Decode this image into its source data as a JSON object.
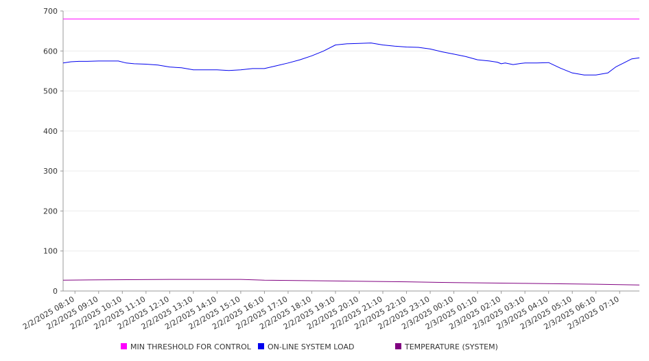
{
  "chart_data": {
    "type": "line",
    "title": "",
    "xlabel": "",
    "ylabel": "",
    "ylim": [
      0,
      700
    ],
    "yticks": [
      0,
      100,
      200,
      300,
      400,
      500,
      600,
      700
    ],
    "x_range": [
      "2/2/2025 07:40",
      "2/3/2025 08:00"
    ],
    "x_tick_labels": [
      "2/2/2025 08:10",
      "2/2/2025 09:10",
      "2/2/2025 10:10",
      "2/2/2025 11:10",
      "2/2/2025 12:10",
      "2/2/2025 13:10",
      "2/2/2025 14:10",
      "2/2/2025 15:10",
      "2/2/2025 16:10",
      "2/2/2025 17:10",
      "2/2/2025 18:10",
      "2/2/2025 19:10",
      "2/2/2025 20:10",
      "2/2/2025 21:10",
      "2/2/2025 22:10",
      "2/2/2025 23:10",
      "2/3/2025 00:10",
      "2/3/2025 01:10",
      "2/3/2025 02:10",
      "2/3/2025 03:10",
      "2/3/2025 04:10",
      "2/3/2025 05:10",
      "2/3/2025 06:10",
      "2/3/2025 07:10"
    ],
    "grid": true,
    "legend_position": "bottom",
    "series": [
      {
        "name": "MIN THRESHOLD FOR CONTROL",
        "color": "#ff00ff",
        "x": [
          "2/2/2025 07:40",
          "2/3/2025 08:00"
        ],
        "y": [
          680,
          680
        ]
      },
      {
        "name": "ON-LINE SYSTEM LOAD",
        "color": "#0000ee",
        "x": [
          "2/2/2025 07:40",
          "2/2/2025 08:00",
          "2/2/2025 08:20",
          "2/2/2025 08:40",
          "2/2/2025 09:10",
          "2/2/2025 09:40",
          "2/2/2025 10:00",
          "2/2/2025 10:20",
          "2/2/2025 10:40",
          "2/2/2025 11:10",
          "2/2/2025 11:40",
          "2/2/2025 12:10",
          "2/2/2025 12:40",
          "2/2/2025 13:10",
          "2/2/2025 13:40",
          "2/2/2025 14:10",
          "2/2/2025 14:40",
          "2/2/2025 15:10",
          "2/2/2025 15:40",
          "2/2/2025 16:10",
          "2/2/2025 16:40",
          "2/2/2025 17:10",
          "2/2/2025 17:40",
          "2/2/2025 18:10",
          "2/2/2025 18:40",
          "2/2/2025 19:10",
          "2/2/2025 19:40",
          "2/2/2025 20:10",
          "2/2/2025 20:40",
          "2/2/2025 21:10",
          "2/2/2025 21:40",
          "2/2/2025 22:10",
          "2/2/2025 22:40",
          "2/2/2025 23:10",
          "2/2/2025 23:40",
          "2/3/2025 00:10",
          "2/3/2025 00:40",
          "2/3/2025 01:10",
          "2/3/2025 01:40",
          "2/3/2025 02:00",
          "2/3/2025 02:10",
          "2/3/2025 02:20",
          "2/3/2025 02:40",
          "2/3/2025 03:00",
          "2/3/2025 03:10",
          "2/3/2025 03:40",
          "2/3/2025 04:10",
          "2/3/2025 04:40",
          "2/3/2025 05:10",
          "2/3/2025 05:40",
          "2/3/2025 06:10",
          "2/3/2025 06:40",
          "2/3/2025 07:00",
          "2/3/2025 07:10",
          "2/3/2025 07:20",
          "2/3/2025 07:40",
          "2/3/2025 08:00"
        ],
        "y": [
          570,
          573,
          574,
          574,
          575,
          575,
          575,
          570,
          568,
          567,
          565,
          560,
          558,
          553,
          553,
          553,
          551,
          553,
          556,
          556,
          563,
          570,
          578,
          588,
          600,
          615,
          618,
          619,
          620,
          615,
          612,
          610,
          609,
          605,
          598,
          592,
          586,
          578,
          575,
          572,
          568,
          570,
          566,
          569,
          570,
          570,
          571,
          557,
          545,
          540,
          540,
          545,
          560,
          565,
          570,
          580,
          583
        ]
      },
      {
        "name": "TEMPERATURE (SYSTEM)",
        "color": "#800080",
        "x": [
          "2/2/2025 07:40",
          "2/2/2025 09:10",
          "2/2/2025 12:10",
          "2/2/2025 15:10",
          "2/2/2025 16:10",
          "2/2/2025 19:10",
          "2/2/2025 22:10",
          "2/3/2025 00:10",
          "2/3/2025 03:10",
          "2/3/2025 06:10",
          "2/3/2025 08:00"
        ],
        "y": [
          27,
          28,
          29,
          29,
          27,
          25,
          23,
          21,
          19,
          17,
          15
        ]
      }
    ]
  }
}
